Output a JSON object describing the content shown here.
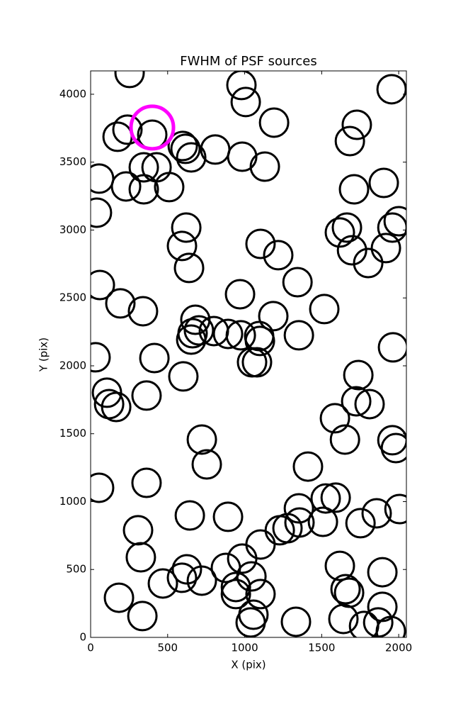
{
  "chart_data": {
    "type": "scatter",
    "title": "FWHM of PSF sources",
    "x_label": "X (pix)",
    "y_label": "Y (pix)",
    "xlim": [
      0,
      2050
    ],
    "ylim": [
      0,
      4172
    ],
    "xticks": [
      0,
      500,
      1000,
      1500,
      2000
    ],
    "yticks": [
      0,
      500,
      1000,
      1500,
      2000,
      2500,
      3000,
      3500,
      4000
    ],
    "grid": false,
    "series": [
      {
        "color": "#000000",
        "x": [
          253,
          979,
          1007,
          1954,
          175,
          239,
          400,
          598,
          616,
          653,
          809,
          984,
          1191,
          1131,
          1728,
          1683,
          1710,
          1903,
          55,
          230,
          345,
          345,
          428,
          510,
          41,
          2000,
          1959,
          1917,
          1664,
          1618,
          1697,
          1802,
          621,
          593,
          639,
          1103,
          1218,
          1343,
          60,
          970,
          193,
          340,
          1517,
          1186,
          680,
          703,
          800,
          662,
          653,
          892,
          975,
          1094,
          1099,
          1352,
          1963,
          32,
          414,
          1048,
          1080,
          1738,
          602,
          106,
          363,
          120,
          166,
          1724,
          1811,
          1586,
          1651,
          1959,
          1982,
          722,
          754,
          1411,
          55,
          363,
          1526,
          1591,
          2005,
          1857,
          644,
          892,
          1352,
          1356,
          1508,
          1752,
          1228,
          1278,
          308,
          1103,
          326,
          984,
          1618,
          625,
          878,
          1894,
          593,
          1044,
          469,
          722,
          943,
          943,
          1103,
          1655,
          1678,
          184,
          1894,
          1057,
          336,
          1641,
          1867,
          1333,
          1039,
          1775,
          1949
        ],
        "y": [
          4157,
          4068,
          3943,
          4037,
          3687,
          3739,
          3702,
          3619,
          3598,
          3535,
          3593,
          3540,
          3791,
          3467,
          3775,
          3655,
          3300,
          3347,
          3379,
          3321,
          3462,
          3300,
          3462,
          3316,
          3128,
          3065,
          3018,
          2867,
          3018,
          2982,
          2851,
          2757,
          3018,
          2883,
          2721,
          2898,
          2815,
          2616,
          2595,
          2527,
          2460,
          2402,
          2418,
          2366,
          2339,
          2261,
          2256,
          2240,
          2193,
          2235,
          2225,
          2219,
          2183,
          2225,
          2136,
          2063,
          2057,
          2026,
          2026,
          1932,
          1922,
          1802,
          1781,
          1718,
          1697,
          1739,
          1718,
          1614,
          1457,
          1452,
          1394,
          1457,
          1274,
          1258,
          1102,
          1138,
          1023,
          1029,
          945,
          914,
          898,
          888,
          950,
          846,
          851,
          841,
          789,
          804,
          789,
          684,
          590,
          580,
          527,
          501,
          512,
          480,
          439,
          449,
          397,
          418,
          371,
          319,
          319,
          355,
          329,
          292,
          225,
          167,
          157,
          136,
          110,
          115,
          110,
          84,
          47
        ]
      },
      {
        "color": "#ff00ff",
        "x": [
          400
        ],
        "y": [
          3755
        ]
      }
    ]
  }
}
